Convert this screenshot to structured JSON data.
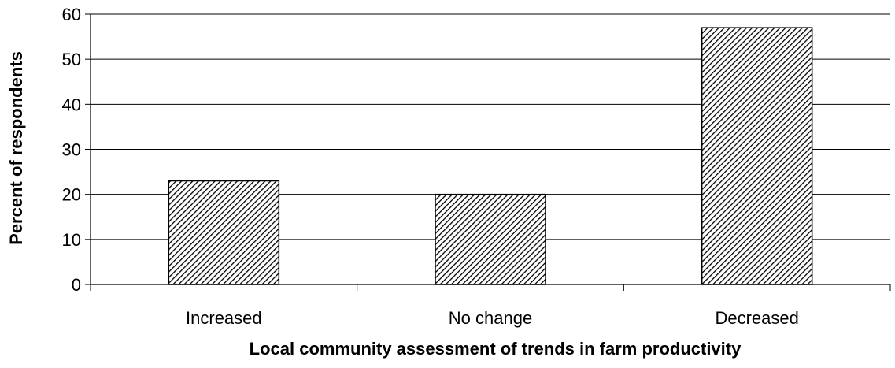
{
  "chart_data": {
    "type": "bar",
    "title": "",
    "xlabel": "Local community assessment of trends in farm productivity",
    "ylabel": "Percent of respondents",
    "categories": [
      "Increased",
      "No change",
      "Decreased"
    ],
    "values": [
      23,
      20,
      57
    ],
    "ylim": [
      0,
      60
    ],
    "yticks": [
      0,
      10,
      20,
      30,
      40,
      50,
      60
    ],
    "grid": "horizontal",
    "legend": "none",
    "bar_fill": "diagonal-hatch",
    "colors": {
      "bar_stroke": "#000000",
      "hatch": "#000000",
      "grid": "#000000"
    }
  }
}
